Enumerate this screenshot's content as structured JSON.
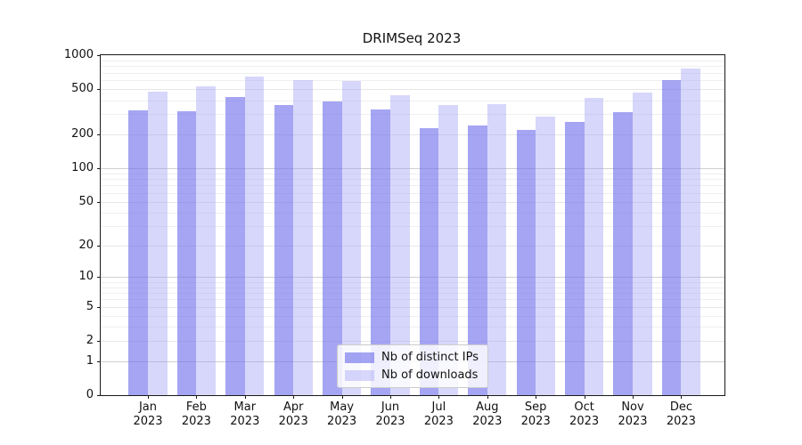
{
  "chart_data": {
    "type": "bar",
    "title": "DRIMSeq 2023",
    "categories": [
      "Jan",
      "Feb",
      "Mar",
      "Apr",
      "May",
      "Jun",
      "Jul",
      "Aug",
      "Sep",
      "Oct",
      "Nov",
      "Dec"
    ],
    "category_year": "2023",
    "series": [
      {
        "name": "Nb of distinct IPs",
        "color": "rgba(110,110,235,0.62)",
        "values": [
          325,
          320,
          430,
          365,
          390,
          330,
          225,
          240,
          220,
          255,
          315,
          600
        ]
      },
      {
        "name": "Nb of downloads",
        "color": "rgba(160,160,245,0.42)",
        "values": [
          480,
          535,
          650,
          600,
          590,
          440,
          360,
          370,
          285,
          420,
          465,
          760
        ]
      }
    ],
    "yscale": "log1p",
    "ylim": [
      0,
      1000
    ],
    "yticks_labeled": [
      0,
      1,
      2,
      5,
      10,
      20,
      50,
      100,
      200,
      500,
      1000
    ],
    "yticks_minor": [
      3,
      4,
      6,
      7,
      8,
      9,
      30,
      40,
      60,
      70,
      80,
      90,
      300,
      400,
      600,
      700,
      800,
      900
    ],
    "grid": true,
    "legend_position": "lower center",
    "colors": {
      "grid_major": "#cfcfcf",
      "grid_labeled": "#e7e7e7",
      "grid_minor": "#efefef",
      "axis": "#1a1a1a",
      "text": "#111111"
    }
  }
}
